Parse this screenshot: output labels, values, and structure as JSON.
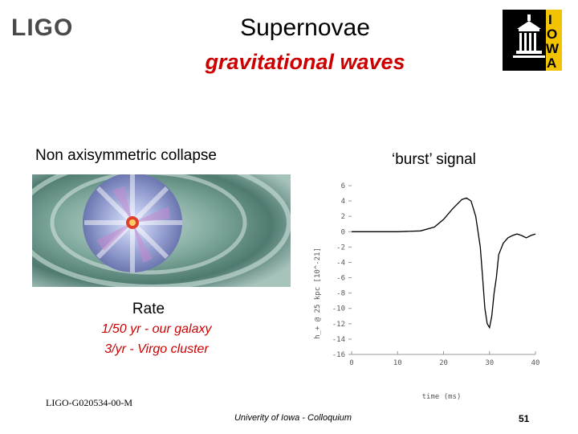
{
  "header": {
    "logo_left": "LIGO",
    "title": "Supernovae",
    "subtitle": "gravitational waves",
    "logo_right_letters": [
      "I",
      "O",
      "W",
      "A"
    ]
  },
  "left_panel": {
    "label": "Non axisymmetric collapse",
    "rate": {
      "heading": "Rate",
      "line1": "1/50 yr - our galaxy",
      "line2": "3/yr - Virgo cluster"
    }
  },
  "right_panel": {
    "label": "‘burst’ signal"
  },
  "chart_data": {
    "type": "line",
    "xlabel": "time (ms)",
    "ylabel": "h_+ @ 25 kpc [10^-21]",
    "x_ticks": [
      "0",
      "10",
      "20",
      "30",
      "40"
    ],
    "y_ticks": [
      "6",
      "4",
      "2",
      "0",
      "-2",
      "-4",
      "-6",
      "-8",
      "-10",
      "-12",
      "-14",
      "-16"
    ],
    "xlim": [
      0,
      40
    ],
    "ylim": [
      -16,
      6
    ],
    "grid": false,
    "series": [
      {
        "x": [
          0,
          5,
          10,
          15,
          18,
          20,
          22,
          24,
          25,
          26,
          27,
          28,
          28.5,
          29,
          29.5,
          30,
          30.5,
          31,
          31.5,
          32,
          33,
          34,
          35,
          36,
          37,
          38,
          39,
          40
        ],
        "values": [
          0,
          0,
          0,
          0.1,
          0.6,
          1.6,
          3.0,
          4.2,
          4.4,
          4.0,
          2.0,
          -2.0,
          -6.0,
          -10.0,
          -12.0,
          -12.5,
          -11.0,
          -8.0,
          -6.0,
          -3.0,
          -1.5,
          -0.8,
          -0.5,
          -0.3,
          -0.5,
          -0.8,
          -0.5,
          -0.3
        ],
        "color": "#000000"
      }
    ]
  },
  "footer": {
    "doc_id": "LIGO-G020534-00-M",
    "venue": "Univerity of Iowa - Colloquium",
    "page": "51"
  }
}
